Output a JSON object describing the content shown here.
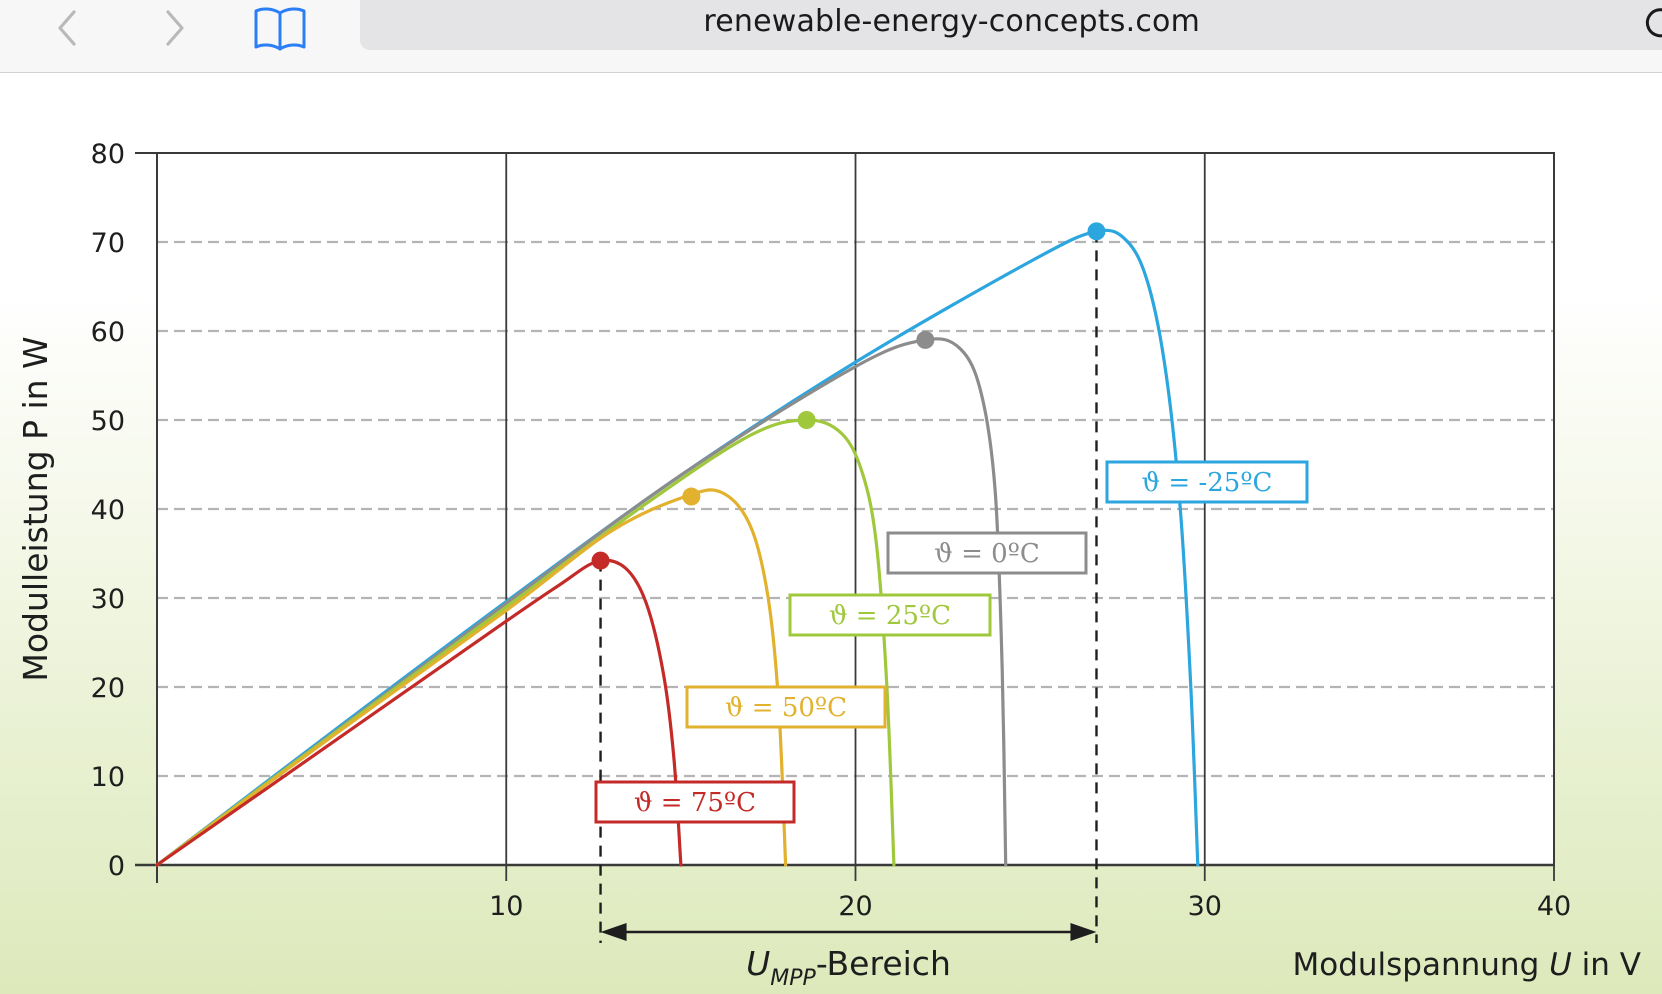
{
  "browser": {
    "url": "renewable-energy-concepts.com",
    "back_icon": "chevron-left-icon",
    "forward_icon": "chevron-right-icon",
    "bookmarks_icon": "book-icon",
    "reload_icon": "reload-icon"
  },
  "chart_data": {
    "type": "line",
    "title": "",
    "xlabel": "Modulspannung U in V",
    "ylabel": "Modulleistung P in W",
    "xlim": [
      0,
      40
    ],
    "ylim": [
      0,
      80
    ],
    "x_ticks": [
      10,
      20,
      30,
      40
    ],
    "y_ticks": [
      0,
      10,
      20,
      30,
      40,
      50,
      60,
      70,
      80
    ],
    "grid": {
      "vertical": "solid",
      "horizontal": "dashed"
    },
    "series": [
      {
        "label": "ϑ = 75ºC",
        "color": "#c42a28",
        "points": [
          [
            0,
            0
          ],
          [
            5,
            13.7
          ],
          [
            10,
            27.4
          ],
          [
            11.5,
            31.4
          ],
          [
            12.6,
            34.1
          ],
          [
            13.4,
            33.4
          ],
          [
            14.0,
            29.5
          ],
          [
            14.5,
            21.5
          ],
          [
            14.8,
            12
          ],
          [
            15.0,
            0
          ]
        ],
        "mpp": [
          12.7,
          34.2
        ]
      },
      {
        "label": "ϑ = 50ºC",
        "color": "#e2b12e",
        "points": [
          [
            0,
            0
          ],
          [
            5,
            14.4
          ],
          [
            10,
            28.6
          ],
          [
            13,
            37.5
          ],
          [
            15.2,
            41.5
          ],
          [
            16.2,
            41.8
          ],
          [
            17.0,
            38
          ],
          [
            17.5,
            30
          ],
          [
            17.8,
            18
          ],
          [
            18.0,
            0
          ]
        ],
        "mpp": [
          15.3,
          41.4
        ]
      },
      {
        "label": "ϑ = 25ºC",
        "color": "#a0c83c",
        "points": [
          [
            0,
            0
          ],
          [
            5,
            14.6
          ],
          [
            10,
            29
          ],
          [
            14,
            40.6
          ],
          [
            17,
            48.3
          ],
          [
            18.6,
            50.0
          ],
          [
            19.6,
            48.5
          ],
          [
            20.2,
            44
          ],
          [
            20.6,
            36
          ],
          [
            20.9,
            20
          ],
          [
            21.1,
            0
          ]
        ],
        "mpp": [
          18.6,
          50.0
        ]
      },
      {
        "label": "ϑ = 0ºC",
        "color": "#8c8c8c",
        "points": [
          [
            0,
            0
          ],
          [
            5,
            14.7
          ],
          [
            10,
            29.4
          ],
          [
            15,
            43.8
          ],
          [
            20,
            56.0
          ],
          [
            22.0,
            59.0
          ],
          [
            23.0,
            58.0
          ],
          [
            23.6,
            53
          ],
          [
            24.0,
            42
          ],
          [
            24.2,
            22
          ],
          [
            24.3,
            0
          ]
        ],
        "mpp": [
          22.0,
          59.0
        ]
      },
      {
        "label": "ϑ = -25ºC",
        "color": "#2ca6de",
        "points": [
          [
            0,
            0
          ],
          [
            5,
            14.9
          ],
          [
            10,
            29.6
          ],
          [
            15,
            43.8
          ],
          [
            20,
            56.5
          ],
          [
            25,
            67.8
          ],
          [
            26.9,
            71.2
          ],
          [
            27.8,
            70.0
          ],
          [
            28.4,
            65
          ],
          [
            28.9,
            55
          ],
          [
            29.3,
            40
          ],
          [
            29.6,
            20
          ],
          [
            29.8,
            0
          ]
        ],
        "mpp": [
          26.9,
          71.2
        ]
      }
    ],
    "annotations": {
      "umpp_range": [
        12.7,
        26.9
      ],
      "umpp_label": "U",
      "umpp_subscript": "MPP",
      "umpp_suffix": "-Bereich"
    }
  }
}
